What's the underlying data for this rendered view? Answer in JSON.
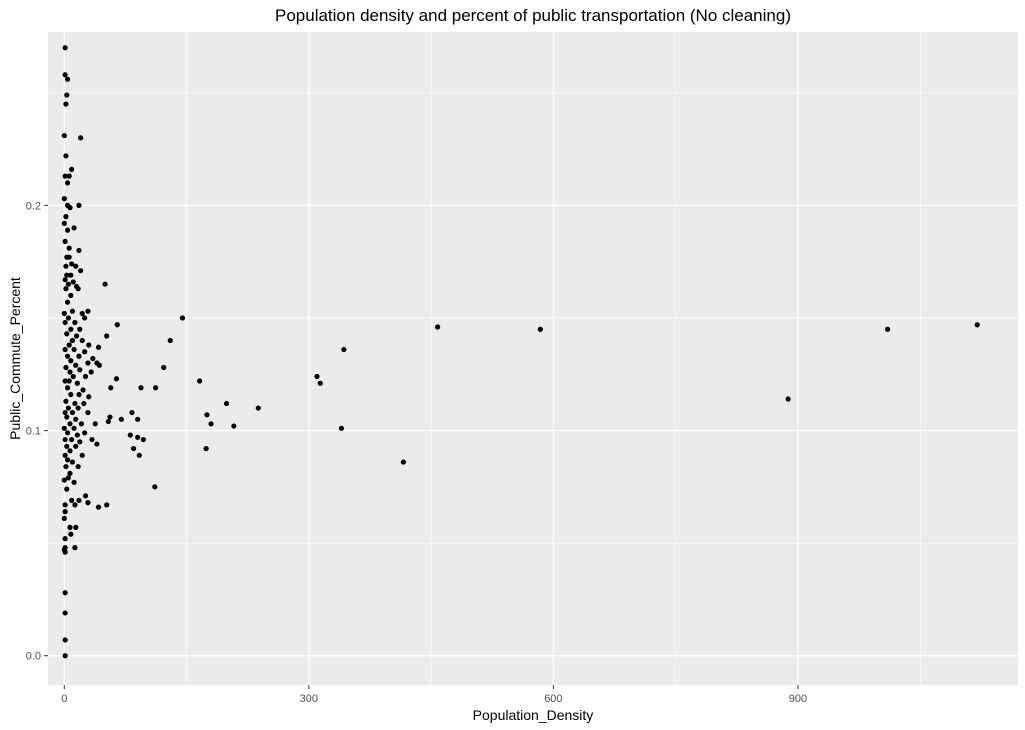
{
  "chart_data": {
    "type": "scatter",
    "title": "Population density and percent of public transportation (No cleaning)",
    "xlabel": "Population_Density",
    "ylabel": "Public_Commute_Percent",
    "xlim": [
      -20,
      1170
    ],
    "ylim": [
      -0.013,
      0.277
    ],
    "xticks": [
      0,
      300,
      600,
      900
    ],
    "xtick_labels": [
      "0",
      "300",
      "600",
      "900"
    ],
    "yticks": [
      0.0,
      0.1,
      0.2
    ],
    "ytick_labels": [
      "0.0",
      "0.1",
      "0.2"
    ],
    "grid": true,
    "panel_color": "#ebebeb",
    "grid_color": "#ffffff",
    "point_color": "#000000",
    "points": [
      [
        1,
        0.27
      ],
      [
        1,
        0.258
      ],
      [
        4,
        0.256
      ],
      [
        3,
        0.249
      ],
      [
        2,
        0.245
      ],
      [
        0,
        0.231
      ],
      [
        20,
        0.23
      ],
      [
        2,
        0.222
      ],
      [
        9,
        0.216
      ],
      [
        1,
        0.213
      ],
      [
        6,
        0.213
      ],
      [
        4,
        0.21
      ],
      [
        0,
        0.203
      ],
      [
        4,
        0.2
      ],
      [
        18,
        0.2
      ],
      [
        7,
        0.199
      ],
      [
        2,
        0.195
      ],
      [
        0,
        0.192
      ],
      [
        12,
        0.19
      ],
      [
        4,
        0.189
      ],
      [
        1,
        0.184
      ],
      [
        6,
        0.181
      ],
      [
        18,
        0.18
      ],
      [
        3,
        0.177
      ],
      [
        6,
        0.177
      ],
      [
        2,
        0.173
      ],
      [
        9,
        0.174
      ],
      [
        14,
        0.173
      ],
      [
        20,
        0.171
      ],
      [
        3,
        0.169
      ],
      [
        8,
        0.169
      ],
      [
        1,
        0.167
      ],
      [
        11,
        0.166
      ],
      [
        5,
        0.165
      ],
      [
        15,
        0.164
      ],
      [
        50,
        0.165
      ],
      [
        2,
        0.163
      ],
      [
        17,
        0.163
      ],
      [
        8,
        0.16
      ],
      [
        4,
        0.157
      ],
      [
        0,
        0.152
      ],
      [
        10,
        0.153
      ],
      [
        22,
        0.152
      ],
      [
        29,
        0.153
      ],
      [
        5,
        0.15
      ],
      [
        25,
        0.15
      ],
      [
        145,
        0.15
      ],
      [
        1,
        0.148
      ],
      [
        13,
        0.148
      ],
      [
        65,
        0.147
      ],
      [
        8,
        0.145
      ],
      [
        19,
        0.145
      ],
      [
        458,
        0.146
      ],
      [
        584,
        0.145
      ],
      [
        1010,
        0.145
      ],
      [
        1120,
        0.147
      ],
      [
        3,
        0.143
      ],
      [
        15,
        0.142
      ],
      [
        52,
        0.142
      ],
      [
        10,
        0.14
      ],
      [
        22,
        0.14
      ],
      [
        130,
        0.14
      ],
      [
        6,
        0.138
      ],
      [
        30,
        0.138
      ],
      [
        42,
        0.137
      ],
      [
        1,
        0.136
      ],
      [
        12,
        0.136
      ],
      [
        25,
        0.135
      ],
      [
        343,
        0.136
      ],
      [
        4,
        0.133
      ],
      [
        18,
        0.133
      ],
      [
        35,
        0.132
      ],
      [
        8,
        0.131
      ],
      [
        29,
        0.13
      ],
      [
        40,
        0.13
      ],
      [
        2,
        0.128
      ],
      [
        14,
        0.129
      ],
      [
        43,
        0.129
      ],
      [
        122,
        0.128
      ],
      [
        7,
        0.126
      ],
      [
        19,
        0.127
      ],
      [
        33,
        0.126
      ],
      [
        11,
        0.124
      ],
      [
        26,
        0.124
      ],
      [
        64,
        0.123
      ],
      [
        310,
        0.124
      ],
      [
        1,
        0.122
      ],
      [
        6,
        0.122
      ],
      [
        16,
        0.121
      ],
      [
        166,
        0.122
      ],
      [
        314,
        0.121
      ],
      [
        4,
        0.119
      ],
      [
        23,
        0.118
      ],
      [
        57,
        0.119
      ],
      [
        94,
        0.119
      ],
      [
        112,
        0.119
      ],
      [
        8,
        0.116
      ],
      [
        18,
        0.116
      ],
      [
        30,
        0.115
      ],
      [
        2,
        0.113
      ],
      [
        13,
        0.112
      ],
      [
        24,
        0.112
      ],
      [
        888,
        0.114
      ],
      [
        199,
        0.112
      ],
      [
        5,
        0.11
      ],
      [
        17,
        0.11
      ],
      [
        238,
        0.11
      ],
      [
        1,
        0.108
      ],
      [
        10,
        0.108
      ],
      [
        29,
        0.108
      ],
      [
        83,
        0.108
      ],
      [
        175,
        0.107
      ],
      [
        3,
        0.106
      ],
      [
        14,
        0.105
      ],
      [
        56,
        0.106
      ],
      [
        70,
        0.105
      ],
      [
        90,
        0.105
      ],
      [
        7,
        0.103
      ],
      [
        21,
        0.103
      ],
      [
        38,
        0.103
      ],
      [
        54,
        0.104
      ],
      [
        180,
        0.103
      ],
      [
        0,
        0.101
      ],
      [
        12,
        0.101
      ],
      [
        208,
        0.102
      ],
      [
        340,
        0.101
      ],
      [
        4,
        0.099
      ],
      [
        16,
        0.098
      ],
      [
        25,
        0.099
      ],
      [
        81,
        0.098
      ],
      [
        90,
        0.097
      ],
      [
        1,
        0.096
      ],
      [
        9,
        0.096
      ],
      [
        97,
        0.096
      ],
      [
        19,
        0.095
      ],
      [
        34,
        0.096
      ],
      [
        3,
        0.093
      ],
      [
        14,
        0.093
      ],
      [
        40,
        0.094
      ],
      [
        7,
        0.091
      ],
      [
        85,
        0.092
      ],
      [
        174,
        0.092
      ],
      [
        1,
        0.089
      ],
      [
        22,
        0.089
      ],
      [
        92,
        0.089
      ],
      [
        4,
        0.087
      ],
      [
        10,
        0.086
      ],
      [
        416,
        0.086
      ],
      [
        2,
        0.084
      ],
      [
        17,
        0.084
      ],
      [
        7,
        0.081
      ],
      [
        5,
        0.079
      ],
      [
        0,
        0.078
      ],
      [
        12,
        0.077
      ],
      [
        111,
        0.075
      ],
      [
        3,
        0.074
      ],
      [
        26,
        0.071
      ],
      [
        9,
        0.069
      ],
      [
        18,
        0.069
      ],
      [
        29,
        0.068
      ],
      [
        1,
        0.067
      ],
      [
        13,
        0.067
      ],
      [
        42,
        0.066
      ],
      [
        52,
        0.067
      ],
      [
        1,
        0.064
      ],
      [
        0,
        0.061
      ],
      [
        7,
        0.057
      ],
      [
        14,
        0.057
      ],
      [
        8,
        0.054
      ],
      [
        1,
        0.052
      ],
      [
        1,
        0.048
      ],
      [
        13,
        0.048
      ],
      [
        0,
        0.047
      ],
      [
        1,
        0.046
      ],
      [
        1,
        0.028
      ],
      [
        1,
        0.019
      ],
      [
        1,
        0.007
      ],
      [
        1,
        0.0
      ]
    ]
  }
}
